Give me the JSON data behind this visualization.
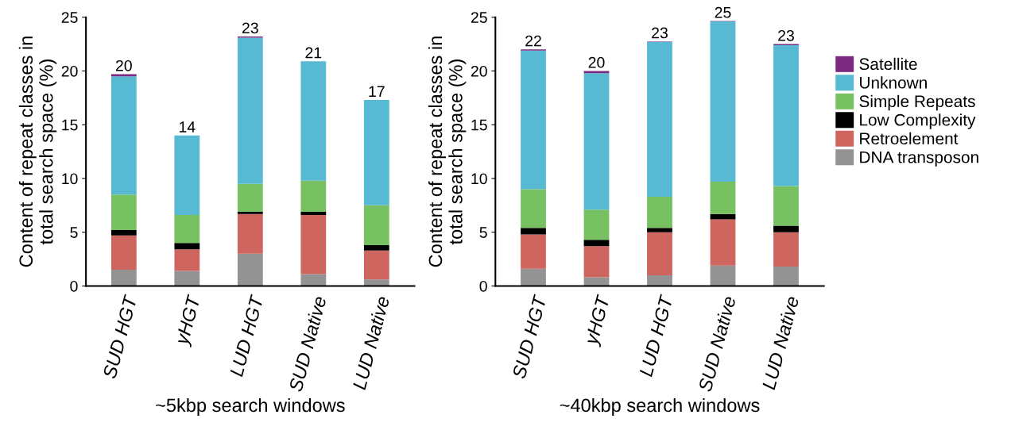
{
  "chart_data": [
    {
      "type": "bar",
      "stacked": true,
      "xlabel": "~5kbp search windows",
      "ylabel": "Content of repeat classes in\ntotal search space (%)",
      "categories": [
        "SUD HGT",
        "yHGT",
        "LUD HGT",
        "SUD Native",
        "LUD Native"
      ],
      "ylim": [
        0,
        25
      ],
      "yticks": [
        0,
        5,
        10,
        15,
        20,
        25
      ],
      "grid": false,
      "totals": [
        "20",
        "14",
        "23",
        "21",
        "17"
      ],
      "series": [
        {
          "color": "#939393",
          "values": [
            1.5,
            1.4,
            3.0,
            1.1,
            0.6
          ]
        },
        {
          "color": "#cf655f",
          "values": [
            3.2,
            2.0,
            3.7,
            5.5,
            2.7
          ]
        },
        {
          "color": "#000000",
          "values": [
            0.5,
            0.6,
            0.2,
            0.3,
            0.5
          ]
        },
        {
          "color": "#77c163",
          "values": [
            3.3,
            2.6,
            2.6,
            2.9,
            3.7
          ]
        },
        {
          "color": "#57b9d2",
          "values": [
            11.0,
            7.4,
            13.6,
            11.1,
            9.8
          ]
        },
        {
          "color": "#7b2a80",
          "values": [
            0.2,
            0.0,
            0.1,
            0.0,
            0.0
          ]
        }
      ]
    },
    {
      "type": "bar",
      "stacked": true,
      "xlabel": "~40kbp search windows",
      "ylabel": "Content of repeat classes in\ntotal search space (%)",
      "categories": [
        "SUD HGT",
        "yHGT",
        "LUD HGT",
        "SUD Native",
        "LUD Native"
      ],
      "ylim": [
        0,
        25
      ],
      "yticks": [
        0,
        5,
        10,
        15,
        20,
        25
      ],
      "grid": false,
      "legend": "right",
      "totals": [
        "22",
        "20",
        "23",
        "25",
        "23"
      ],
      "series": [
        {
          "name": "DNA transposon",
          "color": "#939393",
          "values": [
            1.6,
            0.8,
            1.0,
            1.9,
            1.8
          ]
        },
        {
          "name": "Retroelement",
          "color": "#cf655f",
          "values": [
            3.2,
            2.9,
            4.0,
            4.3,
            3.2
          ]
        },
        {
          "name": "Low Complexity",
          "color": "#000000",
          "values": [
            0.6,
            0.6,
            0.4,
            0.5,
            0.6
          ]
        },
        {
          "name": "Simple Repeats",
          "color": "#77c163",
          "values": [
            3.6,
            2.8,
            2.9,
            3.0,
            3.7
          ]
        },
        {
          "name": "Unknown",
          "color": "#57b9d2",
          "values": [
            12.9,
            12.7,
            14.4,
            14.9,
            13.1
          ]
        },
        {
          "name": "Satellite",
          "color": "#7b2a80",
          "values": [
            0.1,
            0.2,
            0.05,
            0.05,
            0.1
          ]
        }
      ]
    }
  ]
}
